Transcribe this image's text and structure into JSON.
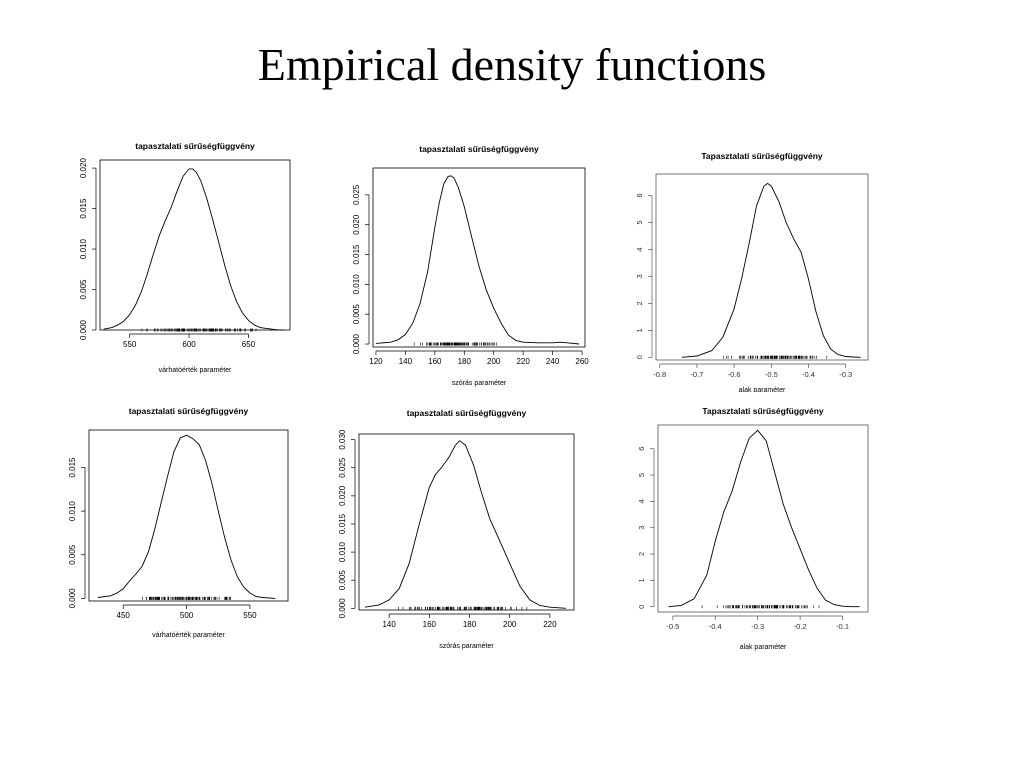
{
  "slide": {
    "title": "Empirical density functions"
  },
  "chart_data": [
    {
      "type": "line",
      "title": "tapasztalati sűrűségfüggvény",
      "xlabel": "várhatóérték paraméter",
      "xlim": [
        525,
        685
      ],
      "ylim": [
        0,
        0.021
      ],
      "xticks": [
        550,
        600,
        650
      ],
      "yticks": [
        0,
        0.005,
        0.01,
        0.015,
        0.02
      ],
      "ytick_labels": [
        "0.000",
        "0.005",
        "0.010",
        "0.015",
        "0.020"
      ],
      "xtick_labels": [
        "550",
        "600",
        "650"
      ],
      "series": [
        {
          "x": [
            528,
            535,
            540,
            545,
            550,
            555,
            560,
            565,
            570,
            575,
            580,
            585,
            590,
            595,
            600,
            603,
            606,
            610,
            615,
            620,
            625,
            630,
            635,
            640,
            645,
            650,
            655,
            660,
            665,
            670,
            675,
            680
          ],
          "y": [
            0.0001,
            0.0003,
            0.0006,
            0.0011,
            0.0019,
            0.0031,
            0.0048,
            0.007,
            0.0094,
            0.0117,
            0.0135,
            0.0152,
            0.0172,
            0.019,
            0.0199,
            0.0199,
            0.0195,
            0.0184,
            0.0162,
            0.0136,
            0.0108,
            0.008,
            0.0055,
            0.0035,
            0.0021,
            0.0012,
            0.0006,
            0.0003,
            0.0002,
            0.0001,
            0.0,
            0.0
          ]
        }
      ],
      "rug": {
        "range": [
          548,
          668
        ],
        "count": 120
      }
    },
    {
      "type": "line",
      "title": "tapasztalati sűrűségfüggvény",
      "xlabel": "szórás paraméter",
      "xlim": [
        118,
        262
      ],
      "ylim": [
        -0.0005,
        0.0295
      ],
      "xticks": [
        120,
        140,
        160,
        180,
        200,
        220,
        240,
        260
      ],
      "yticks": [
        0,
        0.005,
        0.01,
        0.015,
        0.02,
        0.025
      ],
      "ytick_labels": [
        "0.000",
        "0.005",
        "0.010",
        "0.015",
        "0.020",
        "0.025"
      ],
      "xtick_labels": [
        "120",
        "140",
        "160",
        "180",
        "200",
        "220",
        "240",
        "260"
      ],
      "series": [
        {
          "x": [
            120,
            130,
            135,
            140,
            145,
            150,
            155,
            160,
            163,
            166,
            169,
            171,
            173,
            176,
            180,
            185,
            190,
            195,
            200,
            205,
            210,
            215,
            220,
            230,
            240,
            245,
            250,
            258
          ],
          "y": [
            0.0001,
            0.0003,
            0.0007,
            0.0016,
            0.0035,
            0.0068,
            0.012,
            0.0195,
            0.0237,
            0.0268,
            0.0281,
            0.0282,
            0.0278,
            0.0262,
            0.023,
            0.018,
            0.013,
            0.009,
            0.006,
            0.0035,
            0.0015,
            0.0006,
            0.0003,
            0.0002,
            0.0002,
            0.0003,
            0.0002,
            0.0
          ]
        }
      ],
      "rug": {
        "range": [
          140,
          210
        ],
        "count": 120
      }
    },
    {
      "type": "line",
      "title": "Tapasztalati sűrűségfüggvény",
      "xlabel": "alak paraméter",
      "xlim": [
        -0.81,
        -0.24
      ],
      "ylim": [
        -0.1,
        6.8
      ],
      "xticks": [
        -0.8,
        -0.7,
        -0.6,
        -0.5,
        -0.4,
        -0.3
      ],
      "yticks": [
        0,
        1,
        2,
        3,
        4,
        5,
        6
      ],
      "ytick_labels": [
        "0",
        "1",
        "2",
        "3",
        "4",
        "5",
        "6"
      ],
      "xtick_labels": [
        "-0.8",
        "-0.7",
        "-0.6",
        "-0.5",
        "-0.4",
        "-0.3"
      ],
      "series": [
        {
          "x": [
            -0.74,
            -0.7,
            -0.66,
            -0.63,
            -0.6,
            -0.58,
            -0.56,
            -0.54,
            -0.52,
            -0.51,
            -0.5,
            -0.48,
            -0.46,
            -0.44,
            -0.42,
            -0.4,
            -0.38,
            -0.36,
            -0.34,
            -0.32,
            -0.3,
            -0.28,
            -0.26
          ],
          "y": [
            0.0,
            0.05,
            0.25,
            0.75,
            1.8,
            2.9,
            4.2,
            5.6,
            6.35,
            6.45,
            6.35,
            5.8,
            5.0,
            4.4,
            3.9,
            2.9,
            1.7,
            0.8,
            0.3,
            0.1,
            0.03,
            0.01,
            0.0
          ]
        }
      ],
      "rug": {
        "range": [
          -0.66,
          -0.32
        ],
        "count": 120
      }
    },
    {
      "type": "line",
      "title": "tapasztalati sűrűségfüggvény",
      "xlabel": "várhatóérték paraméter",
      "xlim": [
        423,
        580
      ],
      "ylim": [
        -0.0003,
        0.0193
      ],
      "xticks": [
        450,
        500,
        550
      ],
      "yticks": [
        0,
        0.005,
        0.01,
        0.015
      ],
      "ytick_labels": [
        "0.000",
        "0.005",
        "0.010",
        "0.015"
      ],
      "xtick_labels": [
        "450",
        "500",
        "550"
      ],
      "series": [
        {
          "x": [
            430,
            440,
            445,
            450,
            455,
            460,
            465,
            470,
            475,
            480,
            485,
            490,
            495,
            500,
            505,
            510,
            515,
            520,
            525,
            530,
            535,
            540,
            545,
            550,
            555,
            560,
            570
          ],
          "y": [
            0.0001,
            0.0003,
            0.0006,
            0.0011,
            0.002,
            0.0028,
            0.0037,
            0.0054,
            0.008,
            0.011,
            0.014,
            0.0168,
            0.0184,
            0.0187,
            0.0183,
            0.0176,
            0.0158,
            0.0132,
            0.01,
            0.007,
            0.0044,
            0.0025,
            0.0013,
            0.0006,
            0.0002,
            0.0001,
            0.0
          ]
        }
      ],
      "rug": {
        "range": [
          448,
          548
        ],
        "count": 120
      }
    },
    {
      "type": "line",
      "title": "tapasztalati sűrűségfüggvény",
      "xlabel": "szórás paraméter",
      "xlim": [
        125,
        232
      ],
      "ylim": [
        -0.0003,
        0.031
      ],
      "xticks": [
        140,
        160,
        180,
        200,
        220
      ],
      "yticks": [
        0,
        0.005,
        0.01,
        0.015,
        0.02,
        0.025,
        0.03
      ],
      "ytick_labels": [
        "0.000",
        "0.005",
        "0.010",
        "0.015",
        "0.020",
        "0.025",
        "0.030"
      ],
      "xtick_labels": [
        "140",
        "160",
        "180",
        "200",
        "220"
      ],
      "series": [
        {
          "x": [
            128,
            135,
            140,
            145,
            150,
            155,
            160,
            163,
            166,
            170,
            173,
            175,
            178,
            182,
            186,
            190,
            195,
            200,
            205,
            210,
            215,
            220,
            228
          ],
          "y": [
            0.0002,
            0.0006,
            0.0015,
            0.0035,
            0.008,
            0.015,
            0.0215,
            0.0238,
            0.025,
            0.027,
            0.029,
            0.0298,
            0.029,
            0.0255,
            0.0205,
            0.016,
            0.012,
            0.008,
            0.004,
            0.0015,
            0.0005,
            0.0002,
            0.0
          ]
        }
      ],
      "rug": {
        "range": [
          138,
          212
        ],
        "count": 120
      }
    },
    {
      "type": "line",
      "title": "Tapasztalati sűrűségfüggvény",
      "xlabel": "alak paraméter",
      "xlim": [
        -0.535,
        -0.04
      ],
      "ylim": [
        -0.2,
        6.9
      ],
      "xticks": [
        -0.5,
        -0.4,
        -0.3,
        -0.2,
        -0.1
      ],
      "yticks": [
        0,
        1,
        2,
        3,
        4,
        5,
        6
      ],
      "ytick_labels": [
        "0",
        "1",
        "2",
        "3",
        "4",
        "5",
        "6"
      ],
      "xtick_labels": [
        "-0.5",
        "-0.4",
        "-0.3",
        "-0.2",
        "-0.1"
      ],
      "series": [
        {
          "x": [
            -0.51,
            -0.48,
            -0.45,
            -0.42,
            -0.4,
            -0.38,
            -0.36,
            -0.34,
            -0.32,
            -0.3,
            -0.28,
            -0.26,
            -0.24,
            -0.22,
            -0.2,
            -0.18,
            -0.16,
            -0.14,
            -0.12,
            -0.1,
            -0.08,
            -0.06
          ],
          "y": [
            0.0,
            0.05,
            0.3,
            1.2,
            2.5,
            3.6,
            4.4,
            5.5,
            6.4,
            6.7,
            6.3,
            5.1,
            3.9,
            3.0,
            2.2,
            1.4,
            0.7,
            0.25,
            0.08,
            0.02,
            0.0,
            0.0
          ]
        }
      ],
      "rug": {
        "range": [
          -0.44,
          -0.13
        ],
        "count": 120
      }
    }
  ]
}
